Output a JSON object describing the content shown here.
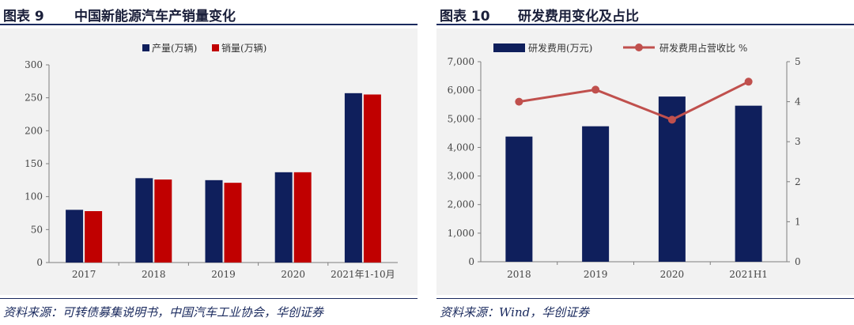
{
  "left": {
    "figure_label": "图表 9",
    "title": "中国新能源汽车产销量变化",
    "source": "资料来源：可转债募集说明书，中国汽车工业协会，华创证券"
  },
  "right": {
    "figure_label": "图表 10",
    "title": "研发费用变化及占比",
    "source": "资料来源：Wind，华创证券"
  },
  "colors": {
    "navy": "#0f1f5c",
    "red": "#c00000",
    "line_red": "#c0504d",
    "background": "#f2f2f2"
  },
  "chart_data": [
    {
      "type": "bar",
      "title": "",
      "categories": [
        "2017",
        "2018",
        "2019",
        "2020",
        "2021年1-10月"
      ],
      "series": [
        {
          "name": "产量(万辆)",
          "color": "#0f1f5c",
          "values": [
            80,
            128,
            125,
            137,
            257
          ]
        },
        {
          "name": "销量(万辆)",
          "color": "#c00000",
          "values": [
            78,
            126,
            121,
            137,
            255
          ]
        }
      ],
      "yticks": [
        "0",
        "50",
        "100",
        "150",
        "200",
        "250",
        "300"
      ],
      "ylim": [
        0,
        300
      ],
      "legend": "top-center",
      "grid": false
    },
    {
      "type": "bar",
      "title": "",
      "categories": [
        "2018",
        "2019",
        "2020",
        "2021H1"
      ],
      "series": [
        {
          "name": "研发费用(万元)",
          "color": "#0f1f5c",
          "axis": "left",
          "kind": "bar",
          "values": [
            4380,
            4740,
            5780,
            5460
          ]
        },
        {
          "name": "研发费用占营收比 %",
          "color": "#c0504d",
          "axis": "right",
          "kind": "line",
          "values": [
            4.0,
            4.3,
            3.55,
            4.5
          ]
        }
      ],
      "yticks": [
        "0",
        "1,000",
        "2,000",
        "3,000",
        "4,000",
        "5,000",
        "6,000",
        "7,000"
      ],
      "ylim": [
        0,
        7000
      ],
      "y2ticks": [
        "0",
        "1",
        "2",
        "3",
        "4",
        "5"
      ],
      "y2lim": [
        0,
        5
      ],
      "legend": "top-center",
      "grid": false
    }
  ]
}
